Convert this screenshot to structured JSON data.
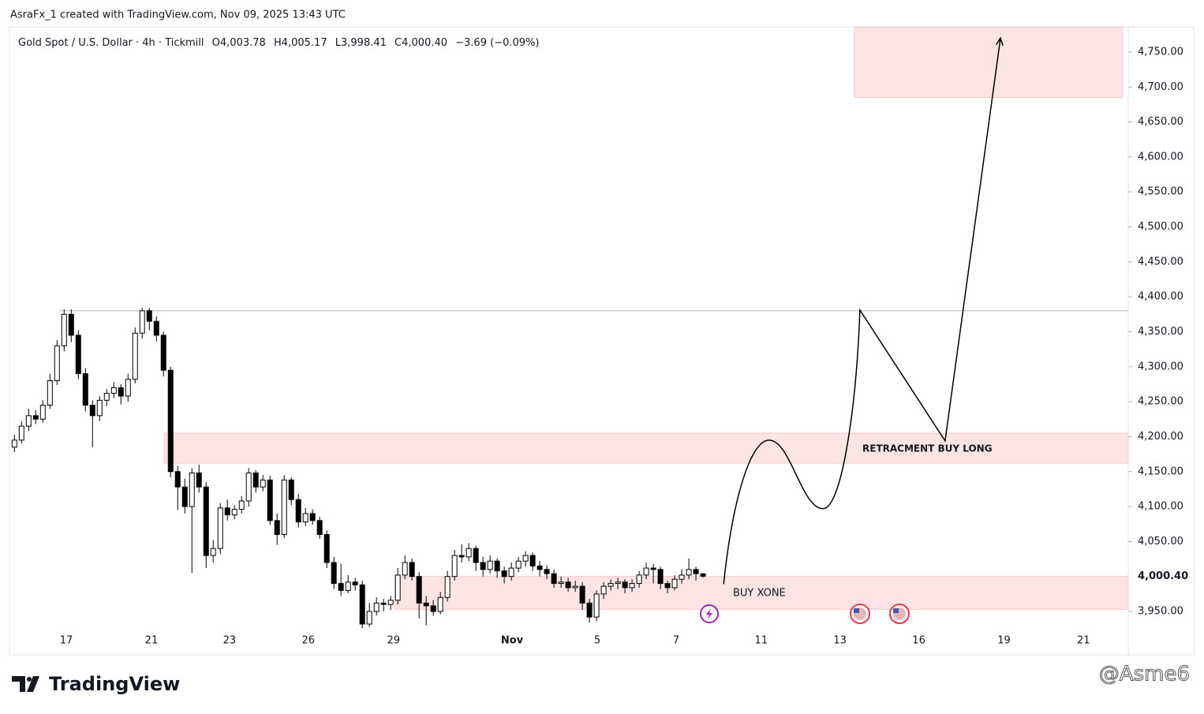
{
  "credit": "AsraFx_1 created with TradingView.com, Nov 09, 2025 13:43 UTC",
  "logo": "TradingView",
  "watermark": "@Asme6",
  "chart_data": {
    "type": "candlestick",
    "title": "Gold Spot / U.S. Dollar · 4h · Tickmill",
    "ohlc_labels": [
      "O4,003.78",
      "H4,005.17",
      "L3,998.41",
      "C4,000.40",
      "−3.69 (−0.09%)"
    ],
    "candles": [
      [
        4185,
        4203,
        4178,
        4195
      ],
      [
        4195,
        4222,
        4190,
        4215
      ],
      [
        4215,
        4240,
        4208,
        4230
      ],
      [
        4230,
        4238,
        4218,
        4225
      ],
      [
        4225,
        4252,
        4220,
        4245
      ],
      [
        4245,
        4290,
        4240,
        4280
      ],
      [
        4280,
        4338,
        4274,
        4330
      ],
      [
        4330,
        4382,
        4322,
        4375
      ],
      [
        4375,
        4382,
        4335,
        4345
      ],
      [
        4345,
        4352,
        4282,
        4290
      ],
      [
        4290,
        4298,
        4236,
        4245
      ],
      [
        4245,
        4252,
        4185,
        4230
      ],
      [
        4230,
        4258,
        4222,
        4252
      ],
      [
        4252,
        4268,
        4244,
        4262
      ],
      [
        4262,
        4278,
        4255,
        4270
      ],
      [
        4270,
        4275,
        4246,
        4258
      ],
      [
        4258,
        4290,
        4250,
        4282
      ],
      [
        4282,
        4356,
        4276,
        4348
      ],
      [
        4348,
        4384,
        4340,
        4380
      ],
      [
        4380,
        4384,
        4352,
        4365
      ],
      [
        4365,
        4372,
        4336,
        4345
      ],
      [
        4345,
        4350,
        4286,
        4295
      ],
      [
        4295,
        4300,
        4142,
        4150
      ],
      [
        4150,
        4158,
        4095,
        4128
      ],
      [
        4128,
        4140,
        4090,
        4100
      ],
      [
        4100,
        4155,
        4005,
        4148
      ],
      [
        4148,
        4160,
        4120,
        4128
      ],
      [
        4128,
        4135,
        4012,
        4030
      ],
      [
        4030,
        4052,
        4020,
        4040
      ],
      [
        4040,
        4105,
        4032,
        4098
      ],
      [
        4098,
        4110,
        4080,
        4088
      ],
      [
        4088,
        4102,
        4082,
        4096
      ],
      [
        4096,
        4115,
        4090,
        4108
      ],
      [
        4108,
        4155,
        4100,
        4148
      ],
      [
        4148,
        4152,
        4120,
        4128
      ],
      [
        4128,
        4145,
        4122,
        4138
      ],
      [
        4138,
        4144,
        4074,
        4080
      ],
      [
        4080,
        4090,
        4045,
        4060
      ],
      [
        4060,
        4145,
        4055,
        4138
      ],
      [
        4138,
        4142,
        4102,
        4110
      ],
      [
        4110,
        4118,
        4070,
        4078
      ],
      [
        4078,
        4098,
        4072,
        4090
      ],
      [
        4090,
        4096,
        4074,
        4080
      ],
      [
        4080,
        4085,
        4054,
        4060
      ],
      [
        4060,
        4066,
        4012,
        4020
      ],
      [
        4020,
        4028,
        3982,
        3990
      ],
      [
        3990,
        4018,
        3972,
        3980
      ],
      [
        3980,
        4002,
        3976,
        3992
      ],
      [
        3992,
        3998,
        3980,
        3988
      ],
      [
        3988,
        3994,
        3926,
        3932
      ],
      [
        3932,
        3962,
        3928,
        3950
      ],
      [
        3950,
        3970,
        3944,
        3962
      ],
      [
        3962,
        3968,
        3950,
        3960
      ],
      [
        3960,
        3972,
        3952,
        3966
      ],
      [
        3966,
        4012,
        3960,
        4002
      ],
      [
        4002,
        4030,
        3996,
        4020
      ],
      [
        4020,
        4026,
        3994,
        4000
      ],
      [
        4000,
        4006,
        3940,
        3962
      ],
      [
        3962,
        3972,
        3930,
        3958
      ],
      [
        3958,
        3966,
        3944,
        3950
      ],
      [
        3950,
        3978,
        3946,
        3970
      ],
      [
        3970,
        4008,
        3964,
        4000
      ],
      [
        4000,
        4038,
        3994,
        4030
      ],
      [
        4030,
        4046,
        4020,
        4028
      ],
      [
        4028,
        4048,
        4022,
        4040
      ],
      [
        4040,
        4044,
        4008,
        4020
      ],
      [
        4020,
        4028,
        4000,
        4010
      ],
      [
        4010,
        4030,
        4004,
        4022
      ],
      [
        4022,
        4026,
        3998,
        4008
      ],
      [
        4008,
        4014,
        3990,
        4000
      ],
      [
        4000,
        4020,
        3994,
        4012
      ],
      [
        4012,
        4028,
        4006,
        4022
      ],
      [
        4022,
        4036,
        4014,
        4030
      ],
      [
        4030,
        4034,
        4008,
        4015
      ],
      [
        4015,
        4022,
        4000,
        4010
      ],
      [
        4010,
        4016,
        3996,
        4004
      ],
      [
        4004,
        4010,
        3984,
        3990
      ],
      [
        3990,
        4000,
        3984,
        3992
      ],
      [
        3992,
        3998,
        3978,
        3984
      ],
      [
        3984,
        3994,
        3978,
        3986
      ],
      [
        3986,
        3992,
        3952,
        3962
      ],
      [
        3962,
        3968,
        3934,
        3942
      ],
      [
        3942,
        3980,
        3936,
        3975
      ],
      [
        3975,
        3992,
        3968,
        3986
      ],
      [
        3986,
        3996,
        3980,
        3990
      ],
      [
        3990,
        3998,
        3982,
        3992
      ],
      [
        3992,
        3996,
        3976,
        3984
      ],
      [
        3984,
        3996,
        3978,
        3990
      ],
      [
        3990,
        4008,
        3984,
        4002
      ],
      [
        4002,
        4020,
        3996,
        4012
      ],
      [
        4012,
        4018,
        3990,
        4010
      ],
      [
        4010,
        4014,
        3982,
        3990
      ],
      [
        3990,
        3994,
        3976,
        3984
      ],
      [
        3984,
        4002,
        3980,
        3996
      ],
      [
        3996,
        4010,
        3990,
        4002
      ],
      [
        4002,
        4026,
        3996,
        4010
      ],
      [
        4010,
        4014,
        3994,
        4004
      ],
      [
        4003.78,
        4005.17,
        3998.41,
        4000.4
      ]
    ],
    "up_color": "#ffffff",
    "down_color": "#000000",
    "wick_color": "#000000",
    "xlim": [
      -0.7,
      156.9
    ],
    "xticks": [
      {
        "value": 7.3,
        "label": "17"
      },
      {
        "value": 19.3,
        "label": "21"
      },
      {
        "value": 30.3,
        "label": "23"
      },
      {
        "value": 41.4,
        "label": "26"
      },
      {
        "value": 53.4,
        "label": "29"
      },
      {
        "value": 70.1,
        "label": "Nov"
      },
      {
        "value": 82.1,
        "label": "5"
      },
      {
        "value": 93.2,
        "label": "7"
      },
      {
        "value": 105.2,
        "label": "11"
      },
      {
        "value": 116.3,
        "label": "13"
      },
      {
        "value": 127.4,
        "label": "16"
      },
      {
        "value": 139.4,
        "label": "19"
      },
      {
        "value": 150.6,
        "label": "21"
      }
    ],
    "ylim": [
      3921.8,
      4786.1
    ],
    "yticks": [
      {
        "value": 4750,
        "label": "4,750.00"
      },
      {
        "value": 4700,
        "label": "4,700.00"
      },
      {
        "value": 4650,
        "label": "4,650.00"
      },
      {
        "value": 4600,
        "label": "4,600.00"
      },
      {
        "value": 4550,
        "label": "4,550.00"
      },
      {
        "value": 4500,
        "label": "4,500.00"
      },
      {
        "value": 4450,
        "label": "4,450.00"
      },
      {
        "value": 4400,
        "label": "4,400.00"
      },
      {
        "value": 4350,
        "label": "4,350.00"
      },
      {
        "value": 4300,
        "label": "4,300.00"
      },
      {
        "value": 4250,
        "label": "4,250.00"
      },
      {
        "value": 4200,
        "label": "4,200.00"
      },
      {
        "value": 4150,
        "label": "4,150.00"
      },
      {
        "value": 4100,
        "label": "4,100.00"
      },
      {
        "value": 4050,
        "label": "4,050.00"
      },
      {
        "value": 3950,
        "label": "3,950.00"
      }
    ],
    "price_tag": {
      "value": 4000.4,
      "label": "4,000.40"
    },
    "grid": false,
    "zones": [
      {
        "top": 4785,
        "bottom": 4685,
        "start": 118.3,
        "end": 156.1,
        "color": "#fde4e4"
      },
      {
        "top": 4205,
        "bottom": 4162,
        "start": 21.1,
        "end": 156.9,
        "color": "#fde4e4"
      },
      {
        "top": 4000,
        "bottom": 3953,
        "start": 53.6,
        "end": 156.9,
        "color": "#fde4e4"
      }
    ],
    "level": {
      "value": 4380,
      "start": 6.3,
      "end": 156.9
    },
    "projection": {
      "x": [
        99.9,
        106.3,
        113.9,
        119.1,
        131.1,
        138.9
      ],
      "y": [
        3989,
        4195,
        4097,
        4381,
        4194,
        4770
      ]
    },
    "annotations": [
      "BUY XONE",
      "RETRACMENT BUY LONG"
    ]
  }
}
